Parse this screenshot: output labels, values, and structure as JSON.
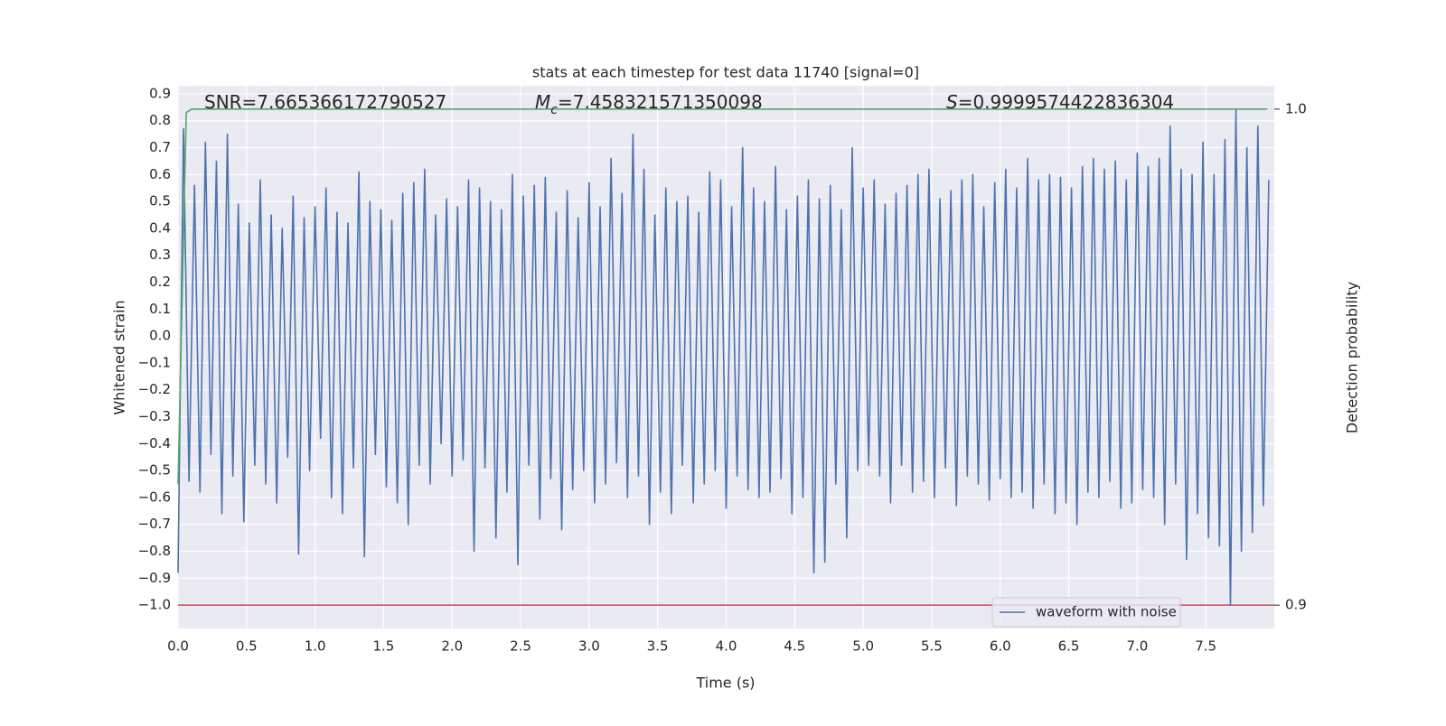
{
  "chart_data": {
    "type": "line",
    "title": "stats at each timestep for test data 11740 [signal=0]",
    "xlabel": "Time (s)",
    "ylabel": "Whitened strain",
    "y2label": "Detection probability",
    "annotations": [
      {
        "text": "SNR=7.665366172790527"
      },
      {
        "symbol": "M",
        "subscript": "c",
        "text": "=7.458321571350098"
      },
      {
        "symbol": "S",
        "text": "=0.9999574422836304"
      }
    ],
    "xlim": [
      0,
      8
    ],
    "ylim": [
      -1.087,
      0.93
    ],
    "y2lim": [
      0.8953,
      1.0047
    ],
    "xticks": [
      {
        "value": 0,
        "label": "0.0"
      },
      0.5,
      {
        "value": 1,
        "label": "1.0"
      },
      1.5,
      {
        "value": 2,
        "label": "2.0"
      },
      2.5,
      {
        "value": 3,
        "label": "3.0"
      },
      3.5,
      {
        "value": 4,
        "label": "4.0"
      },
      4.5,
      {
        "value": 5,
        "label": "5.0"
      },
      5.5,
      {
        "value": 6,
        "label": "6.0"
      },
      6.5,
      {
        "value": 7,
        "label": "7.0"
      },
      7.5
    ],
    "yticks": [
      {
        "value": -1,
        "label": "−1.0"
      },
      {
        "value": -0.9,
        "label": "−0.9"
      },
      {
        "value": -0.8,
        "label": "−0.8"
      },
      {
        "value": -0.7,
        "label": "−0.7"
      },
      {
        "value": -0.6,
        "label": "−0.6"
      },
      {
        "value": -0.5,
        "label": "−0.5"
      },
      {
        "value": -0.4,
        "label": "−0.4"
      },
      {
        "value": -0.3,
        "label": "−0.3"
      },
      {
        "value": -0.2,
        "label": "−0.2"
      },
      {
        "value": -0.1,
        "label": "−0.1"
      },
      {
        "value": 0,
        "label": "0.0"
      },
      0.1,
      0.2,
      0.3,
      0.4,
      0.5,
      0.6,
      0.7,
      0.8,
      0.9
    ],
    "y2ticks": [
      0.9,
      {
        "value": 1,
        "label": "1.0"
      }
    ],
    "grid": true,
    "legend": "lower right",
    "series": [
      {
        "name": "waveform with noise",
        "color": "#4c72b0",
        "x": [
          0,
          0.04,
          0.08,
          0.12,
          0.16,
          0.2,
          0.24,
          0.28,
          0.32,
          0.36,
          0.4,
          0.44,
          0.48,
          0.52,
          0.56,
          0.6,
          0.64,
          0.68,
          0.72,
          0.76,
          0.8,
          0.84,
          0.88,
          0.92,
          0.96,
          1,
          1.04,
          1.08,
          1.12,
          1.16,
          1.2,
          1.24,
          1.28,
          1.32,
          1.36,
          1.4,
          1.44,
          1.48,
          1.52,
          1.56,
          1.6,
          1.64,
          1.68,
          1.72,
          1.76,
          1.8,
          1.84,
          1.88,
          1.92,
          1.96,
          2,
          2.04,
          2.08,
          2.12,
          2.16,
          2.2,
          2.24,
          2.28,
          2.32,
          2.36,
          2.4,
          2.44,
          2.48,
          2.52,
          2.56,
          2.6,
          2.64,
          2.68,
          2.72,
          2.76,
          2.8,
          2.84,
          2.88,
          2.92,
          2.96,
          3,
          3.04,
          3.08,
          3.12,
          3.16,
          3.2,
          3.24,
          3.28,
          3.32,
          3.36,
          3.4,
          3.44,
          3.48,
          3.52,
          3.56,
          3.6,
          3.64,
          3.68,
          3.72,
          3.76,
          3.8,
          3.84,
          3.88,
          3.92,
          3.96,
          4,
          4.04,
          4.08,
          4.12,
          4.16,
          4.2,
          4.24,
          4.28,
          4.32,
          4.36,
          4.4,
          4.44,
          4.48,
          4.52,
          4.56,
          4.6,
          4.64,
          4.68,
          4.72,
          4.76,
          4.8,
          4.84,
          4.88,
          4.92,
          4.96,
          5,
          5.04,
          5.08,
          5.12,
          5.16,
          5.2,
          5.24,
          5.28,
          5.32,
          5.36,
          5.4,
          5.44,
          5.48,
          5.52,
          5.56,
          5.6,
          5.64,
          5.68,
          5.72,
          5.76,
          5.8,
          5.84,
          5.88,
          5.92,
          5.96,
          6,
          6.04,
          6.08,
          6.12,
          6.16,
          6.2,
          6.24,
          6.28,
          6.32,
          6.36,
          6.4,
          6.44,
          6.48,
          6.52,
          6.56,
          6.6,
          6.64,
          6.68,
          6.72,
          6.76,
          6.8,
          6.84,
          6.88,
          6.92,
          6.96,
          7,
          7.04,
          7.08,
          7.12,
          7.16,
          7.2,
          7.24,
          7.28,
          7.32,
          7.36,
          7.4,
          7.44,
          7.48,
          7.52,
          7.56,
          7.6,
          7.64,
          7.68,
          7.72,
          7.76,
          7.8,
          7.84,
          7.88,
          7.92,
          7.96
        ],
        "values": [
          -0.88,
          0.77,
          -0.54,
          0.56,
          -0.58,
          0.72,
          -0.44,
          0.65,
          -0.66,
          0.75,
          -0.52,
          0.49,
          -0.69,
          0.42,
          -0.48,
          0.58,
          -0.55,
          0.45,
          -0.62,
          0.4,
          -0.45,
          0.52,
          -0.81,
          0.44,
          -0.5,
          0.48,
          -0.38,
          0.55,
          -0.6,
          0.46,
          -0.66,
          0.42,
          -0.49,
          0.61,
          -0.82,
          0.5,
          -0.44,
          0.47,
          -0.56,
          0.43,
          -0.62,
          0.53,
          -0.7,
          0.57,
          -0.48,
          0.62,
          -0.55,
          0.45,
          -0.4,
          0.51,
          -0.52,
          0.48,
          -0.46,
          0.58,
          -0.8,
          0.55,
          -0.49,
          0.5,
          -0.75,
          0.47,
          -0.58,
          0.6,
          -0.85,
          0.52,
          -0.48,
          0.56,
          -0.68,
          0.59,
          -0.53,
          0.46,
          -0.72,
          0.54,
          -0.57,
          0.44,
          -0.5,
          0.57,
          -0.62,
          0.48,
          -0.55,
          0.66,
          -0.47,
          0.53,
          -0.6,
          0.75,
          -0.52,
          0.62,
          -0.7,
          0.45,
          -0.58,
          0.55,
          -0.66,
          0.5,
          -0.48,
          0.52,
          -0.62,
          0.46,
          -0.55,
          0.61,
          -0.5,
          0.58,
          -0.64,
          0.48,
          -0.52,
          0.7,
          -0.57,
          0.55,
          -0.6,
          0.5,
          -0.58,
          0.63,
          -0.53,
          0.47,
          -0.66,
          0.52,
          -0.6,
          0.58,
          -0.88,
          0.51,
          -0.84,
          0.56,
          -0.55,
          0.47,
          -0.75,
          0.7,
          -0.5,
          0.55,
          -0.48,
          0.58,
          -0.52,
          0.49,
          -0.62,
          0.53,
          -0.48,
          0.56,
          -0.58,
          0.6,
          -0.54,
          0.62,
          -0.6,
          0.51,
          -0.49,
          0.54,
          -0.63,
          0.58,
          -0.52,
          0.6,
          -0.55,
          0.48,
          -0.61,
          0.57,
          -0.53,
          0.62,
          -0.6,
          0.55,
          -0.58,
          0.66,
          -0.64,
          0.58,
          -0.55,
          0.6,
          -0.66,
          0.59,
          -0.62,
          0.55,
          -0.7,
          0.63,
          -0.58,
          0.66,
          -0.6,
          0.62,
          -0.54,
          0.65,
          -0.64,
          0.58,
          -0.62,
          0.68,
          -0.57,
          0.63,
          -0.6,
          0.66,
          -0.7,
          0.78,
          -0.55,
          0.62,
          -0.83,
          0.6,
          -0.66,
          0.72,
          -0.75,
          0.6,
          -0.78,
          0.73,
          -1.0,
          0.84,
          -0.8,
          0.7,
          -0.73,
          0.78,
          -0.63,
          0.58
        ]
      },
      {
        "color": "#55a868",
        "axis": "y2",
        "x": [
          0,
          0.06,
          0.1,
          7.95
        ],
        "values": [
          0.9244,
          0.9993,
          1.0,
          1.0
        ]
      }
    ],
    "reference_lines": [
      {
        "axis": "y2",
        "value": 0.9,
        "color": "#c44e52"
      }
    ]
  }
}
